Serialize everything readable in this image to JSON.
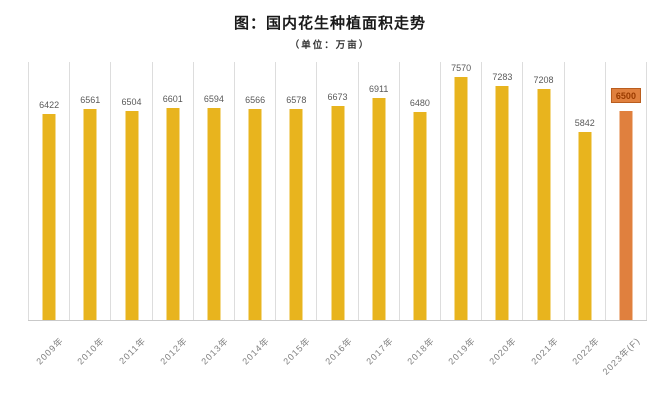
{
  "chart_data": {
    "type": "bar",
    "title": "图：国内花生种植面积走势",
    "subtitle": "（单位：万亩）",
    "unit": "万亩",
    "categories": [
      "2009年",
      "2010年",
      "2011年",
      "2012年",
      "2013年",
      "2014年",
      "2015年",
      "2016年",
      "2017年",
      "2018年",
      "2019年",
      "2020年",
      "2021年",
      "2022年",
      "2023年(F)"
    ],
    "values": [
      6422,
      6561,
      6504,
      6601,
      6594,
      6566,
      6578,
      6673,
      6911,
      6480,
      7570,
      7283,
      7208,
      5842,
      6500
    ],
    "highlight_index": 14,
    "xlabel": "",
    "ylabel": "",
    "ylim": [
      0,
      8000
    ],
    "legend": "none",
    "grid": "vertical-column-separators-only",
    "colors": {
      "bar": "#e8b41e",
      "forecast_bar": "#e0803e",
      "forecast_label_bg": "#e0803e",
      "forecast_label_border": "#ba5d1e",
      "forecast_label_text": "#9a3b00",
      "value_label_text": "#595959",
      "axis_label_text": "#7f7f7f",
      "gridline": "#dddddd",
      "baseline": "#c9c9c9"
    }
  }
}
